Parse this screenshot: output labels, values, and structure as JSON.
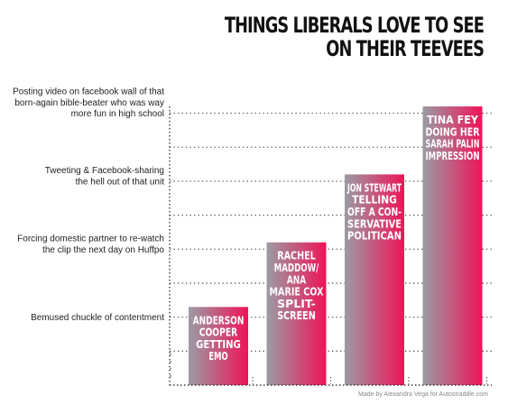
{
  "header": {
    "title_line1": "THINGS LIBERALS LOVE TO SEE",
    "title_line2": "ON THEIR TEEVEES"
  },
  "credit": "Made by Alexandra Vega for Autostraddle.com",
  "chart_data": {
    "type": "bar",
    "title": "THINGS LIBERALS LOVE TO SEE ON THEIR TEEVEES",
    "categories": [
      "ANDERSON COOPER GETTING EMO",
      "RACHEL MADDOW/ ANA MARIE COX SPLIT- SCREEN",
      "JON STEWART TELLING OFF A CON- SERVATIVE POLITICAN",
      "TINA FEY DOING HER SARAH PALIN IMPRESSION"
    ],
    "category_lines": [
      [
        "ANDERSON",
        "COOPER",
        "GETTING",
        "EMO"
      ],
      [
        "RACHEL",
        "MADDOW/",
        "ANA",
        "MARIE COX",
        "SPLIT-",
        "SCREEN"
      ],
      [
        "JON STEWART",
        "TELLING",
        "OFF A CON-",
        "SERVATIVE",
        "POLITICAN"
      ],
      [
        "TINA FEY",
        "DOING HER",
        "SARAH PALIN",
        "IMPRESSION"
      ]
    ],
    "values": [
      2.3,
      4.2,
      6.2,
      8.2
    ],
    "ylim": [
      0,
      8.2
    ],
    "y_tick_labels": [
      {
        "value": 2,
        "lines": [
          "Bemused chuckle of contentment"
        ]
      },
      {
        "value": 4,
        "lines": [
          "Forcing domestic partner to re-watch",
          "the clip the next day on Huffpo"
        ]
      },
      {
        "value": 6,
        "lines": [
          "Tweeting & Facebook-sharing",
          "the hell out of that unit"
        ]
      },
      {
        "value": 8,
        "lines": [
          "Posting video on facebook wall of that",
          "born-again bible-beater who was way",
          "more fun in high school"
        ]
      }
    ],
    "gridlines": [
      1,
      2,
      3,
      4,
      5,
      6,
      7,
      8
    ],
    "grid": true,
    "grid_style": "dotted",
    "colors": {
      "gradient_start": "#9b9ba4",
      "gradient_end": "#ee1458",
      "axis": "#333333"
    }
  }
}
